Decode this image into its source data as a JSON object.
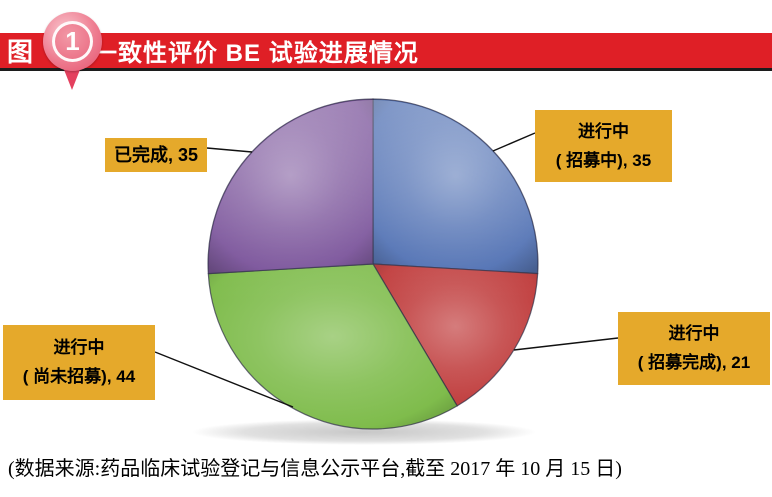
{
  "header": {
    "figure_label": "图",
    "badge_number": "1",
    "title": "一致性评价 BE 试验进展情况",
    "bar_color": "#DF1F26",
    "text_color": "#FFFFFF",
    "badge_colors": {
      "circle": "#EE7C90",
      "inner": "#EA6A81",
      "ring": "#FFFFFF",
      "tail": "#E4405E"
    }
  },
  "chart_data": {
    "type": "pie",
    "title": "一致性评价 BE 试验进展情况",
    "total": 135,
    "start_angle_deg": 0,
    "direction": "clockwise",
    "legend_position": "callouts",
    "callout_bg": "#E5A92B",
    "callout_text_color": "#000000",
    "leader_line_color": "#111111",
    "slices": [
      {
        "label": "进行中(招募中)",
        "value": 35,
        "color": "#5272B4",
        "callout_lines": [
          "进行中",
          "( 招募中), 35"
        ]
      },
      {
        "label": "进行中(招募完成)",
        "value": 21,
        "color": "#C13F3F",
        "callout_lines": [
          "进行中",
          "( 招募完成), 21"
        ]
      },
      {
        "label": "进行中(尚未招募)",
        "value": 44,
        "color": "#7FBC4C",
        "callout_lines": [
          "进行中",
          "( 尚未招募), 44"
        ]
      },
      {
        "label": "已完成",
        "value": 35,
        "color": "#7B549B",
        "callout_lines": [
          "已完成, 35"
        ]
      }
    ]
  },
  "footer": {
    "source_note": "(数据来源:药品临床试验登记与信息公示平台,截至 2017 年 10 月 15 日)"
  }
}
